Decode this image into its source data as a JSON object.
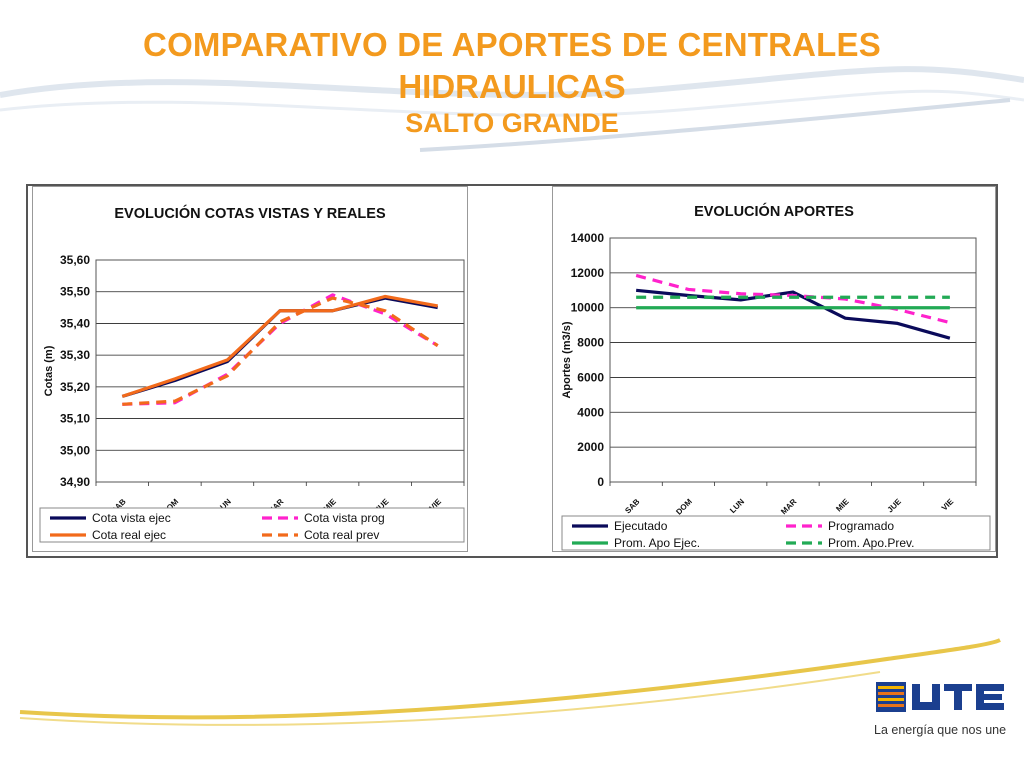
{
  "slide": {
    "title_line1": "COMPARATIVO DE APORTES DE CENTRALES",
    "title_line2": "HIDRAULICAS",
    "title_line3": "SALTO GRANDE",
    "accent_color": "#f39a1e",
    "logo_text": "UTE",
    "logo_tagline": "La energía que nos une"
  },
  "chart_data": [
    {
      "type": "line",
      "title": "EVOLUCIÓN  COTAS VISTAS Y REALES",
      "xlabel": "",
      "ylabel": "Cotas (m)",
      "categories": [
        "SAB",
        "DOM",
        "LUN",
        "MAR",
        "MIE",
        "JUE",
        "VIE"
      ],
      "ylim": [
        34.9,
        35.6
      ],
      "yticks": [
        "35,60",
        "35,50",
        "35,40",
        "35,30",
        "35,20",
        "35,10",
        "35,00",
        "34,90"
      ],
      "grid": true,
      "legend_position": "bottom",
      "series": [
        {
          "name": "Cota vista ejec",
          "color": "#0a0a5a",
          "dash": false,
          "values": [
            35.17,
            35.22,
            35.28,
            35.44,
            35.44,
            35.48,
            35.45
          ]
        },
        {
          "name": "Cota vista prog",
          "color": "#ff22cc",
          "dash": true,
          "values": [
            35.145,
            35.15,
            35.24,
            35.4,
            35.49,
            35.43,
            35.33
          ]
        },
        {
          "name": "Cota real ejec",
          "color": "#f26a1b",
          "dash": false,
          "values": [
            35.17,
            35.225,
            35.285,
            35.44,
            35.44,
            35.485,
            35.455
          ]
        },
        {
          "name": "Cota real prev",
          "color": "#f26a1b",
          "dash": true,
          "values": [
            35.145,
            35.155,
            35.235,
            35.405,
            35.48,
            35.44,
            35.33
          ]
        }
      ]
    },
    {
      "type": "line",
      "title": "EVOLUCIÓN  APORTES",
      "xlabel": "",
      "ylabel": "Aportes (m3/s)",
      "categories": [
        "SAB",
        "DOM",
        "LUN",
        "MAR",
        "MIE",
        "JUE",
        "VIE"
      ],
      "ylim": [
        0,
        14000
      ],
      "yticks": [
        "14000",
        "12000",
        "10000",
        "8000",
        "6000",
        "4000",
        "2000",
        "0"
      ],
      "grid": true,
      "legend_position": "bottom",
      "series": [
        {
          "name": "Ejecutado",
          "color": "#0a0a5a",
          "dash": false,
          "values": [
            11000,
            10700,
            10450,
            10900,
            9400,
            9100,
            8250
          ]
        },
        {
          "name": "Programado",
          "color": "#ff22cc",
          "dash": true,
          "values": [
            11850,
            11050,
            10800,
            10700,
            10500,
            9900,
            9150
          ]
        },
        {
          "name": "Prom. Apo Ejec.",
          "color": "#22aa55",
          "dash": false,
          "values": [
            10000,
            10000,
            10000,
            10000,
            10000,
            10000,
            10000
          ]
        },
        {
          "name": "Prom. Apo.Prev.",
          "color": "#22aa55",
          "dash": true,
          "values": [
            10600,
            10600,
            10600,
            10600,
            10600,
            10600,
            10600
          ]
        }
      ]
    }
  ]
}
